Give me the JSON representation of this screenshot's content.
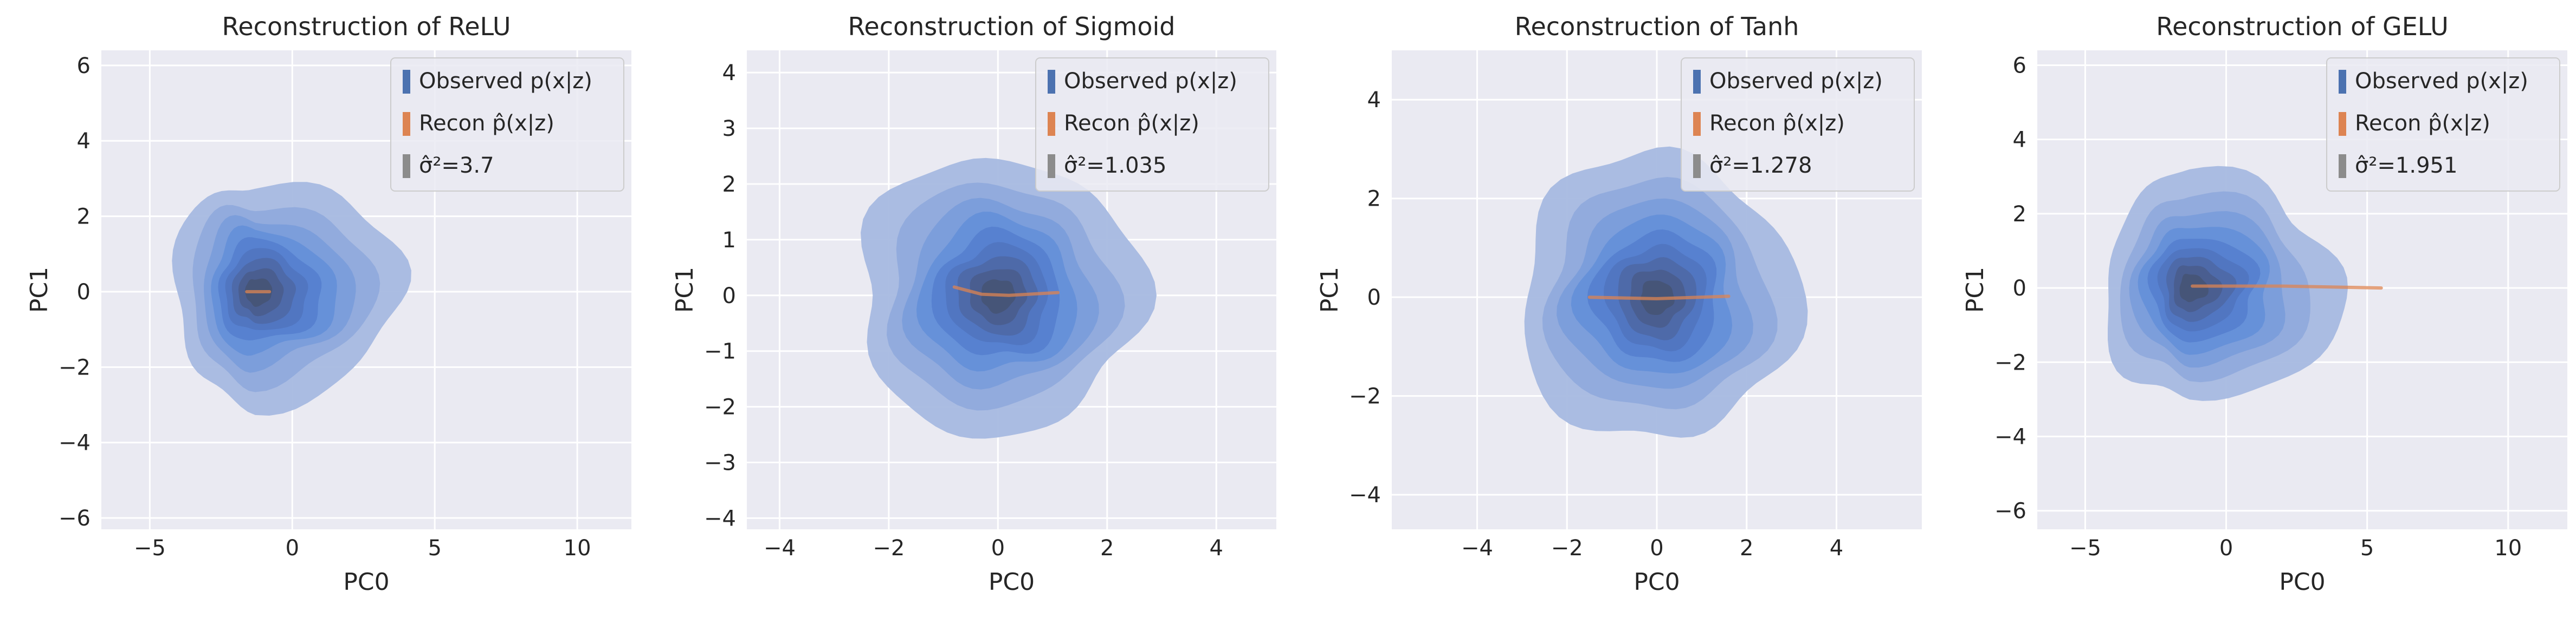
{
  "figure": {
    "colors": {
      "observed": "#4c72b0",
      "recon": "#dd8452",
      "variance": "#8c8c8c",
      "panel_bg": "#eaeaf2",
      "grid": "#ffffff"
    }
  },
  "chart_data": [
    {
      "type": "kde-contour",
      "title": "Reconstruction of ReLU",
      "xlabel": "PC0",
      "ylabel": "PC1",
      "xlim": [
        -6.7,
        11.9
      ],
      "ylim": [
        -6.3,
        6.4
      ],
      "xticks": [
        -5,
        0,
        5,
        10
      ],
      "yticks": [
        -6,
        -4,
        -2,
        0,
        2,
        4,
        6
      ],
      "grid": true,
      "legend_position": "upper-right",
      "legend": [
        "Observed p(x|z)",
        "Recon p̂(x|z)",
        "σ̂²=3.7"
      ],
      "observed": {
        "center": [
          -1.3,
          0.0
        ],
        "spread": [
          3.8,
          3.0
        ],
        "levels": 9
      },
      "recon": {
        "x": [
          -1.6,
          -0.8
        ],
        "y": [
          0.0,
          0.0
        ]
      },
      "sigma2": 3.7
    },
    {
      "type": "kde-contour",
      "title": "Reconstruction of Sigmoid",
      "xlabel": "PC0",
      "ylabel": "PC1",
      "xlim": [
        -4.6,
        5.1
      ],
      "ylim": [
        -4.2,
        4.4
      ],
      "xticks": [
        -4,
        -2,
        0,
        2,
        4
      ],
      "yticks": [
        -4,
        -3,
        -2,
        -1,
        0,
        1,
        2,
        3,
        4
      ],
      "grid": true,
      "legend_position": "upper-right",
      "legend": [
        "Observed p(x|z)",
        "Recon p̂(x|z)",
        "σ̂²=1.035"
      ],
      "observed": {
        "center": [
          0.0,
          0.0
        ],
        "spread": [
          2.6,
          2.5
        ],
        "levels": 9
      },
      "recon": {
        "x": [
          -0.8,
          -0.3,
          0.2,
          1.1
        ],
        "y": [
          0.15,
          0.02,
          0.0,
          0.05
        ]
      },
      "sigma2": 1.035
    },
    {
      "type": "kde-contour",
      "title": "Reconstruction of Tanh",
      "xlabel": "PC0",
      "ylabel": "PC1",
      "xlim": [
        -5.9,
        5.9
      ],
      "ylim": [
        -4.7,
        5.0
      ],
      "xticks": [
        -4,
        -2,
        0,
        2,
        4
      ],
      "yticks": [
        -4,
        -2,
        0,
        2,
        4
      ],
      "grid": true,
      "legend_position": "upper-right",
      "legend": [
        "Observed p(x|z)",
        "Recon p̂(x|z)",
        "σ̂²=1.278"
      ],
      "observed": {
        "center": [
          0.0,
          0.0
        ],
        "spread": [
          3.1,
          2.9
        ],
        "levels": 9
      },
      "recon": {
        "x": [
          -1.5,
          0.0,
          1.6
        ],
        "y": [
          0.0,
          -0.03,
          0.02
        ]
      },
      "sigma2": 1.278
    },
    {
      "type": "kde-contour",
      "title": "Reconstruction of GELU",
      "xlabel": "PC0",
      "ylabel": "PC1",
      "xlim": [
        -6.7,
        12.1
      ],
      "ylim": [
        -6.5,
        6.4
      ],
      "xticks": [
        -5,
        0,
        5,
        10
      ],
      "yticks": [
        -6,
        -4,
        -2,
        0,
        2,
        4,
        6
      ],
      "grid": true,
      "legend_position": "upper-right",
      "legend": [
        "Observed p(x|z)",
        "Recon p̂(x|z)",
        "σ̂²=1.951"
      ],
      "observed": {
        "center": [
          -1.3,
          0.0
        ],
        "spread": [
          4.0,
          3.1
        ],
        "levels": 9
      },
      "recon": {
        "x": [
          -1.2,
          2.0,
          5.5
        ],
        "y": [
          0.05,
          0.05,
          0.0
        ]
      },
      "sigma2": 1.951
    }
  ]
}
